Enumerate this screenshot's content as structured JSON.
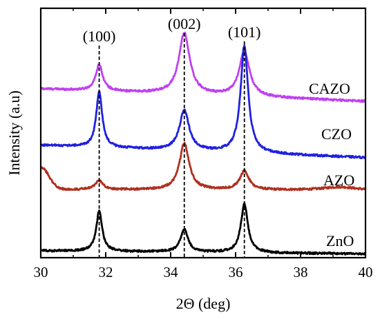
{
  "chart_data": {
    "type": "line",
    "xlabel": "2Θ (deg)",
    "ylabel": "Intensity (a.u)",
    "xlim": [
      30,
      40
    ],
    "xticks": [
      30,
      32,
      34,
      36,
      38,
      40
    ],
    "y_ticks_shown": false,
    "grid": false,
    "legend": "none; series names printed next to each curve at right",
    "peak_markers": [
      {
        "x": 31.8,
        "label": "(100)"
      },
      {
        "x": 34.42,
        "label": "(002)"
      },
      {
        "x": 36.27,
        "label": "(101)"
      }
    ],
    "y_units": "normalized 0-1 of chart height (relative intensity)",
    "series": [
      {
        "name": "CAZO",
        "color": "#c040f0",
        "baseline": 0.677,
        "end_level": 0.627,
        "peaks": [
          {
            "x": 31.8,
            "height": 0.105,
            "width": 0.13
          },
          {
            "x": 34.42,
            "height": 0.245,
            "width": 0.2
          },
          {
            "x": 36.27,
            "height": 0.18,
            "width": 0.19
          }
        ],
        "x": [
          30,
          31,
          31.8,
          33,
          34.42,
          35.5,
          36.27,
          37,
          38,
          39,
          40
        ],
        "y": [
          0.677,
          0.69,
          0.792,
          0.672,
          0.92,
          0.668,
          0.838,
          0.65,
          0.635,
          0.63,
          0.627
        ]
      },
      {
        "name": "CZO",
        "color": "#2020e0",
        "baseline": 0.451,
        "end_level": 0.401,
        "peaks": [
          {
            "x": 31.8,
            "height": 0.225,
            "width": 0.11
          },
          {
            "x": 34.42,
            "height": 0.16,
            "width": 0.18
          },
          {
            "x": 36.27,
            "height": 0.43,
            "width": 0.14
          }
        ],
        "x": [
          30,
          31,
          31.8,
          33,
          34.42,
          35.5,
          36.27,
          37,
          38,
          39,
          40
        ],
        "y": [
          0.451,
          0.46,
          0.68,
          0.43,
          0.582,
          0.43,
          0.845,
          0.42,
          0.41,
          0.405,
          0.401
        ]
      },
      {
        "name": "AZO",
        "color": "#b03020",
        "baseline": 0.273,
        "end_level": 0.27,
        "peaks": [
          {
            "x": 31.8,
            "height": 0.035,
            "width": 0.15
          },
          {
            "x": 34.42,
            "height": 0.185,
            "width": 0.18
          },
          {
            "x": 36.27,
            "height": 0.075,
            "width": 0.17
          },
          {
            "x": 39.2,
            "height": 0.013,
            "width": 0.6
          }
        ],
        "x": [
          30,
          30.5,
          31.8,
          33,
          34.42,
          35.5,
          36.27,
          37,
          38,
          39.2,
          40
        ],
        "y": [
          0.36,
          0.3,
          0.303,
          0.256,
          0.438,
          0.255,
          0.328,
          0.252,
          0.255,
          0.268,
          0.27
        ]
      },
      {
        "name": "ZnO",
        "color": "#000000",
        "baseline": 0.028,
        "end_level": 0.015,
        "peaks": [
          {
            "x": 31.8,
            "height": 0.16,
            "width": 0.11
          },
          {
            "x": 34.42,
            "height": 0.09,
            "width": 0.14
          },
          {
            "x": 36.27,
            "height": 0.195,
            "width": 0.13
          }
        ],
        "x": [
          30,
          31,
          31.8,
          33,
          34.42,
          35.5,
          36.27,
          37,
          38,
          39,
          40
        ],
        "y": [
          0.028,
          0.03,
          0.185,
          0.028,
          0.112,
          0.025,
          0.215,
          0.02,
          0.018,
          0.016,
          0.015
        ]
      }
    ]
  }
}
